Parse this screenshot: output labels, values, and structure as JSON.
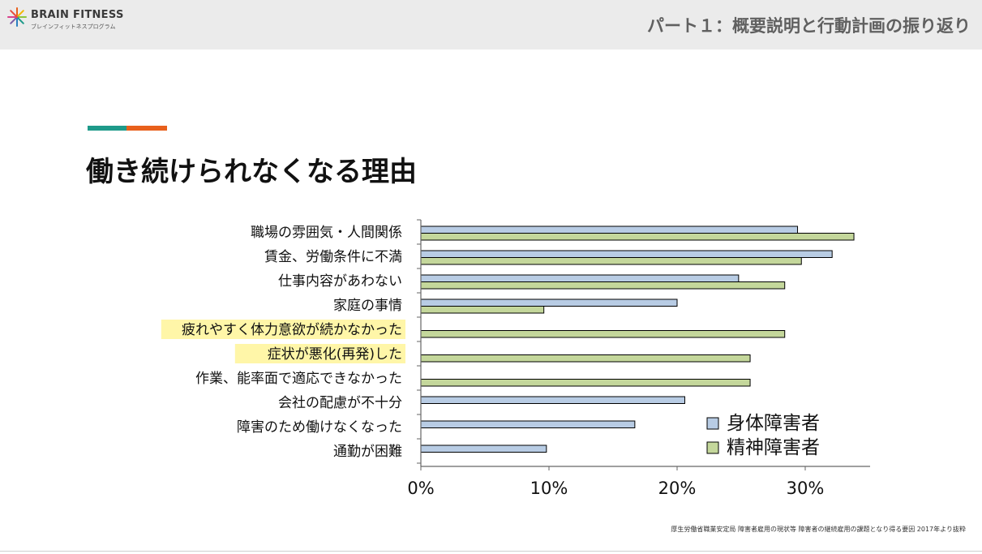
{
  "header": {
    "logo_name": "BRAIN FITNESS",
    "logo_sub": "ブレインフィットネスプログラム",
    "title": "パート１：概要説明と行動計画の振り返り"
  },
  "page": {
    "title": "働き続けられなくなる理由",
    "source": "厚生労働省職業安定局 障害者雇用の現状等 障害者の継続雇用の課題となり得る要因 2017年より抜粋"
  },
  "colors": {
    "accent_teal": "#1e9a8a",
    "accent_orange": "#e8601c",
    "highlight": "#fff6a8",
    "series_physical": "#b8cce4",
    "series_mental": "#c4d79b"
  },
  "chart_data": {
    "type": "bar",
    "orientation": "horizontal",
    "categories": [
      "職場の雰囲気・人間関係",
      "賃金、労働条件に不満",
      "仕事内容があわない",
      "家庭の事情",
      "疲れやすく体力意欲が続かなかった",
      "症状が悪化(再発)した",
      "作業、能率面で適応できなかった",
      "会社の配慮が不十分",
      "障害のため働けなくなった",
      "通勤が困難"
    ],
    "highlighted": [
      false,
      false,
      false,
      false,
      true,
      true,
      false,
      false,
      false,
      false
    ],
    "series": [
      {
        "name": "身体障害者",
        "values": [
          29.4,
          32.1,
          24.8,
          20.0,
          null,
          null,
          null,
          20.6,
          16.7,
          9.8
        ]
      },
      {
        "name": "精神障害者",
        "values": [
          33.8,
          29.7,
          28.4,
          9.6,
          28.4,
          25.7,
          25.7,
          null,
          null,
          null
        ]
      }
    ],
    "xlim": [
      0,
      35
    ],
    "xticks": [
      "0%",
      "10%",
      "20%",
      "30%"
    ],
    "xtick_values": [
      0,
      10,
      20,
      30
    ],
    "legend_position": "bottom-right"
  }
}
